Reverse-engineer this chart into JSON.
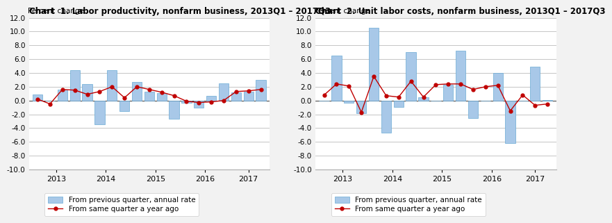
{
  "chart1": {
    "title": "Chart  1. Labor productivity, nonfarm business, 2013Q1 – 2017Q3",
    "ylabel": "Percent change",
    "bar_values": [
      0.9,
      0.0,
      1.6,
      4.4,
      2.4,
      -3.5,
      4.4,
      -1.5,
      2.7,
      1.3,
      1.1,
      -2.7,
      -0.3,
      -1.0,
      0.7,
      2.5,
      1.2,
      1.3,
      3.0
    ],
    "line_values": [
      0.2,
      -0.5,
      1.6,
      1.5,
      0.9,
      1.3,
      2.0,
      0.4,
      2.0,
      1.6,
      1.2,
      0.7,
      -0.1,
      -0.3,
      -0.2,
      0.0,
      1.3,
      1.4,
      1.6
    ]
  },
  "chart2": {
    "title": "Chart  2. Unit labor costs, nonfarm business, 2013Q1 – 2017Q3",
    "ylabel": "Percent change",
    "bar_values": [
      0.0,
      6.5,
      -0.3,
      -1.8,
      10.5,
      -4.7,
      -0.9,
      7.0,
      0.5,
      0.0,
      2.3,
      7.2,
      -2.6,
      0.0,
      4.0,
      -6.2,
      0.0,
      4.9,
      0.1
    ],
    "line_values": [
      0.8,
      2.4,
      2.1,
      -1.7,
      3.5,
      0.7,
      0.5,
      2.8,
      0.5,
      2.3,
      2.4,
      2.4,
      1.6,
      2.0,
      2.2,
      -1.5,
      0.8,
      -0.7,
      -0.5
    ]
  },
  "n_bars": 19,
  "bar_color": "#a8c8e8",
  "bar_edge_color": "#6aaad4",
  "line_color": "#c00000",
  "marker_style": "o",
  "ylim": [
    -10.0,
    12.0
  ],
  "yticks": [
    -10.0,
    -8.0,
    -6.0,
    -4.0,
    -2.0,
    0.0,
    2.0,
    4.0,
    6.0,
    8.0,
    10.0,
    12.0
  ],
  "xtick_years": [
    2013,
    2014,
    2015,
    2016,
    2017
  ],
  "legend_bar_label": "From previous quarter, annual rate",
  "legend_line_label": "From same quarter a year ago",
  "background_color": "#f2f2f2",
  "plot_bg_color": "#ffffff"
}
